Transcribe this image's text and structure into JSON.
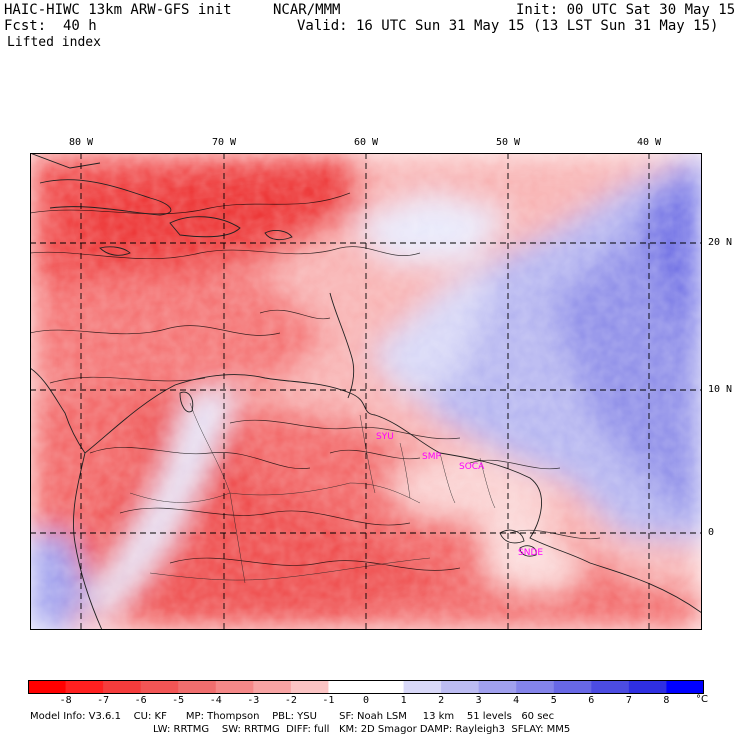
{
  "header": {
    "model_title": "HAIC-HIWC 13km ARW-GFS init",
    "org": "NCAR/MMM",
    "init": "Init: 00 UTC Sat 30 May 15",
    "fcst": "Fcst:  40 h",
    "valid": "Valid: 16 UTC Sun 31 May 15 (13 LST Sun 31 May 15)",
    "field": "Lifted index"
  },
  "map": {
    "lon_labels": [
      "80 W",
      "70 W",
      "60 W",
      "50 W",
      "40 W"
    ],
    "lat_labels": [
      "20 N",
      "10 N",
      "0"
    ],
    "stations": [
      "SYU",
      "SMP",
      "SOCA",
      "SNDE"
    ]
  },
  "colorbar": {
    "ticks": [
      "-8",
      "-7",
      "-6",
      "-5",
      "-4",
      "-3",
      "-2",
      "-1",
      "0",
      "1",
      "2",
      "3",
      "4",
      "5",
      "6",
      "7",
      "8"
    ],
    "unit": "°C",
    "colors": [
      "#ff0000",
      "#ff2020",
      "#f53c3c",
      "#f25555",
      "#f06e6e",
      "#f58888",
      "#f8a4a4",
      "#fbc4c4",
      "#ffffff",
      "#ffffff",
      "#d8d8f8",
      "#bcbcf2",
      "#a0a0ee",
      "#8484ea",
      "#6868e6",
      "#4c4ce2",
      "#2f2fe2",
      "#0000ff"
    ]
  },
  "footer": {
    "line1": "Model Info: V3.6.1    CU: KF      MP: Thompson    PBL: YSU       SF: Noah LSM     13 km    51 levels   60 sec",
    "line2": "LW: RRTMG    SW: RRTMG  DIFF: full   KM: 2D Smagor DAMP: Rayleigh3  SFLAY: MM5"
  }
}
